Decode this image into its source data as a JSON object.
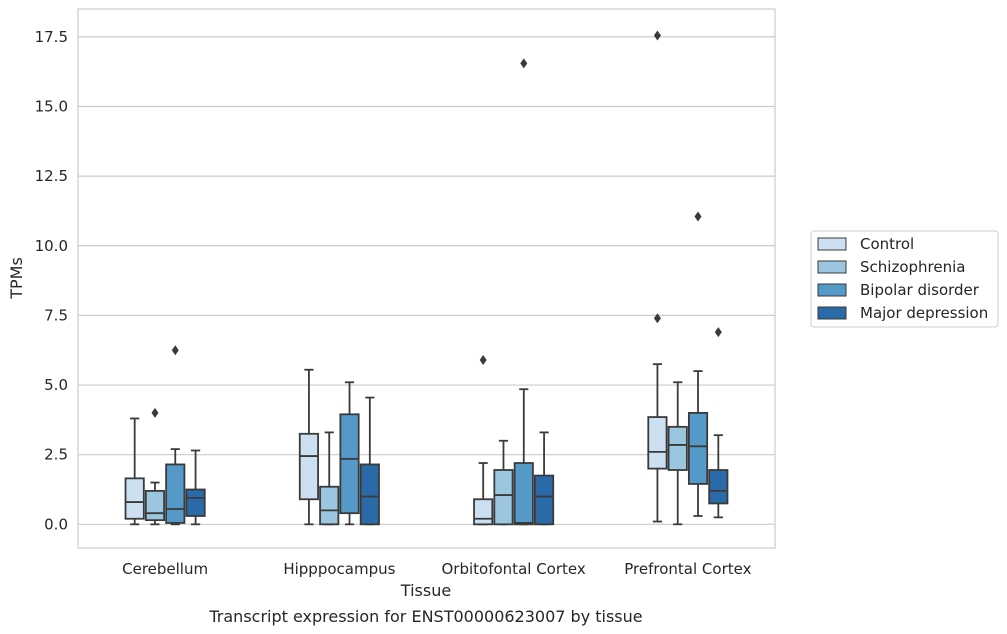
{
  "chart_data": {
    "type": "boxplot",
    "xlabel": "Tissue",
    "ylabel": "TPMs",
    "caption": "Transcript expression for ENST00000623007 by tissue",
    "ylim": [
      -0.85,
      18.5
    ],
    "yticks": [
      0.0,
      2.5,
      5.0,
      7.5,
      10.0,
      12.5,
      15.0,
      17.5
    ],
    "ytick_labels": [
      "0.0",
      "2.5",
      "5.0",
      "7.5",
      "10.0",
      "12.5",
      "15.0",
      "17.5"
    ],
    "grid": "horizontal",
    "legend_position": "right",
    "categories": [
      "Cerebellum",
      "Hipppocampus",
      "Orbitofontal Cortex",
      "Prefrontal Cortex"
    ],
    "series": [
      {
        "name": "Control",
        "color": "#cde0f1",
        "boxes": [
          {
            "whislo": 0.0,
            "q1": 0.2,
            "med": 0.8,
            "q3": 1.65,
            "whishi": 3.8,
            "fliers": []
          },
          {
            "whislo": 0.0,
            "q1": 0.9,
            "med": 2.45,
            "q3": 3.25,
            "whishi": 5.55,
            "fliers": []
          },
          {
            "whislo": 0.0,
            "q1": 0.0,
            "med": 0.2,
            "q3": 0.9,
            "whishi": 2.2,
            "fliers": [
              5.9
            ]
          },
          {
            "whislo": 0.1,
            "q1": 2.0,
            "med": 2.6,
            "q3": 3.85,
            "whishi": 5.75,
            "fliers": [
              7.4,
              17.55
            ]
          }
        ]
      },
      {
        "name": "Schizophrenia",
        "color": "#9bc6df",
        "boxes": [
          {
            "whislo": 0.0,
            "q1": 0.15,
            "med": 0.4,
            "q3": 1.2,
            "whishi": 1.5,
            "fliers": [
              4.0
            ]
          },
          {
            "whislo": 0.0,
            "q1": 0.0,
            "med": 0.5,
            "q3": 1.35,
            "whishi": 3.3,
            "fliers": []
          },
          {
            "whislo": 0.0,
            "q1": 0.0,
            "med": 1.05,
            "q3": 1.95,
            "whishi": 3.0,
            "fliers": []
          },
          {
            "whislo": 0.0,
            "q1": 1.95,
            "med": 2.85,
            "q3": 3.5,
            "whishi": 5.1,
            "fliers": []
          }
        ]
      },
      {
        "name": "Bipolar disorder",
        "color": "#5499c7",
        "boxes": [
          {
            "whislo": 0.0,
            "q1": 0.05,
            "med": 0.55,
            "q3": 2.15,
            "whishi": 2.7,
            "fliers": [
              6.25
            ]
          },
          {
            "whislo": 0.0,
            "q1": 0.4,
            "med": 2.35,
            "q3": 3.95,
            "whishi": 5.1,
            "fliers": []
          },
          {
            "whislo": 0.0,
            "q1": 0.0,
            "med": 0.05,
            "q3": 2.2,
            "whishi": 4.85,
            "fliers": [
              16.55
            ]
          },
          {
            "whislo": 0.3,
            "q1": 1.45,
            "med": 2.8,
            "q3": 4.0,
            "whishi": 5.5,
            "fliers": [
              11.05
            ]
          }
        ]
      },
      {
        "name": "Major depression",
        "color": "#2b6aa9",
        "boxes": [
          {
            "whislo": 0.0,
            "q1": 0.3,
            "med": 0.95,
            "q3": 1.25,
            "whishi": 2.65,
            "fliers": []
          },
          {
            "whislo": 0.0,
            "q1": 0.0,
            "med": 1.0,
            "q3": 2.15,
            "whishi": 4.55,
            "fliers": []
          },
          {
            "whislo": 0.0,
            "q1": 0.0,
            "med": 1.0,
            "q3": 1.75,
            "whishi": 3.3,
            "fliers": []
          },
          {
            "whislo": 0.25,
            "q1": 0.75,
            "med": 1.2,
            "q3": 1.95,
            "whishi": 3.2,
            "fliers": [
              6.9
            ]
          }
        ]
      }
    ]
  }
}
